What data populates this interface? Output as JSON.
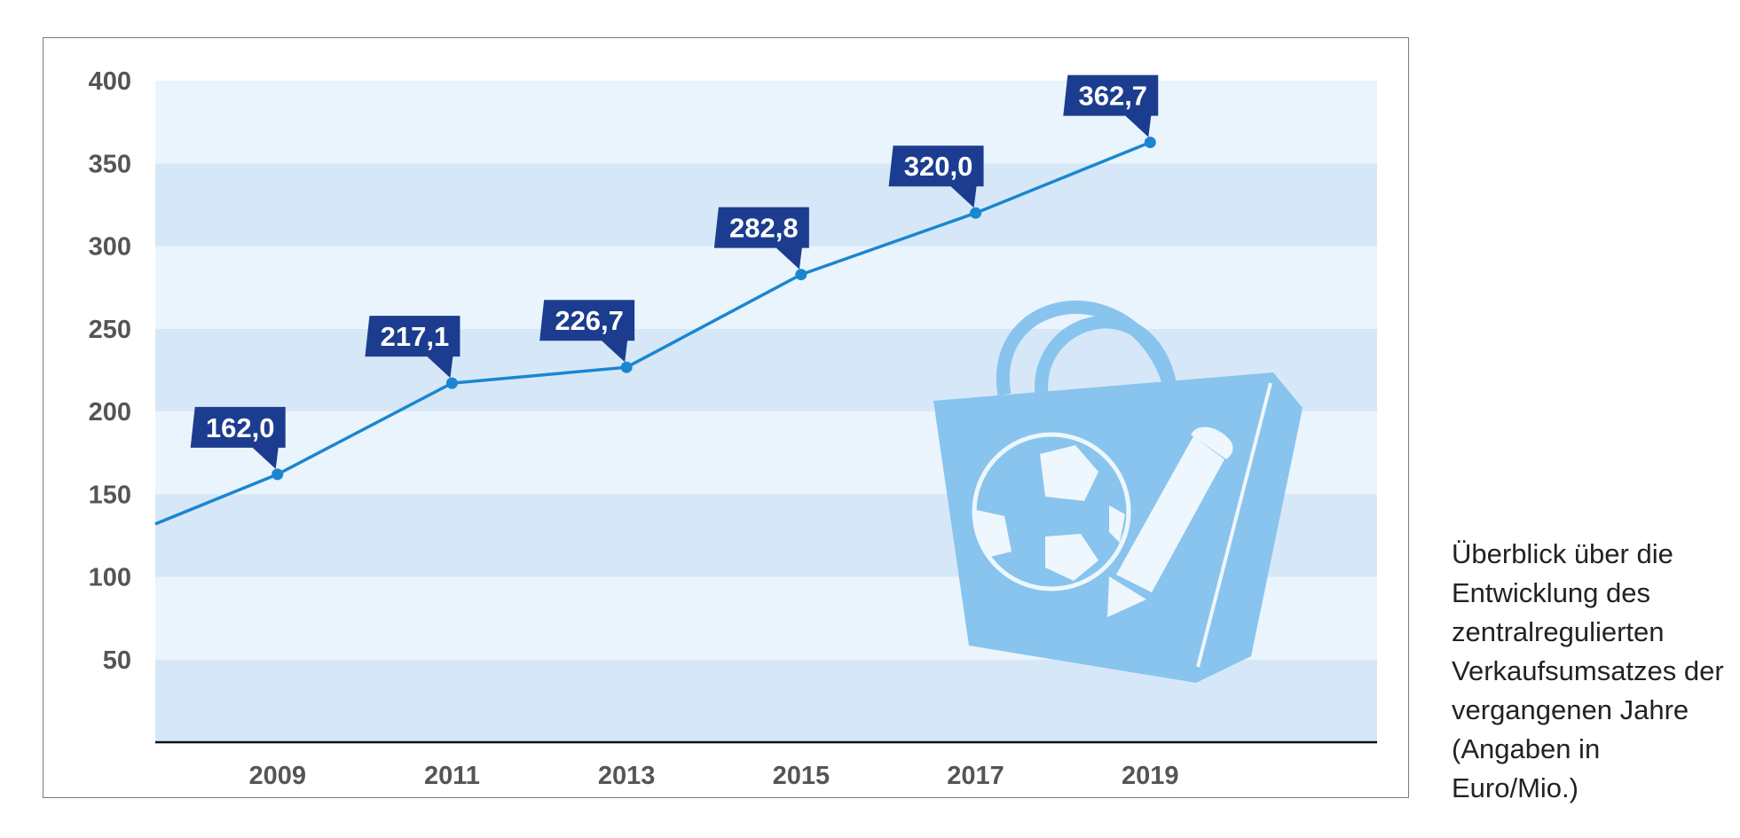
{
  "caption": "Überblick über die Entwicklung des zentralregulierten Verkaufsumsatzes der vergangenen Jahre (Angaben in Euro/Mio.)",
  "colors": {
    "band_light": "#eaf4fc",
    "band_dark": "#d6e8f8",
    "line": "#1a86d0",
    "label_bg": "#1c3d8f",
    "icon": "#88c4ee",
    "axis": "#111111",
    "tick_text": "#555555"
  },
  "icon": "shopping-bag-with-ball-and-pencil-icon",
  "chart_data": {
    "type": "line",
    "title": "",
    "xlabel": "",
    "ylabel": "",
    "grid": "alternating horizontal bands",
    "ylim": [
      0,
      400
    ],
    "yticks": [
      "50",
      "100",
      "150",
      "200",
      "250",
      "300",
      "350",
      "400"
    ],
    "xticks": [
      "2009",
      "2011",
      "2013",
      "2015",
      "2017",
      "2019"
    ],
    "xlim": [
      2007.6,
      2021.6
    ],
    "series": [
      {
        "x": [
          2009,
          2011,
          2013,
          2015,
          2017,
          2019
        ],
        "values": [
          162.0,
          217.1,
          226.7,
          282.8,
          320.0,
          362.7
        ],
        "labels": [
          "162,0",
          "217,1",
          "226,7",
          "282,8",
          "320,0",
          "362,7"
        ]
      }
    ],
    "lead_in": {
      "x": 2007.6,
      "y": 132
    }
  }
}
